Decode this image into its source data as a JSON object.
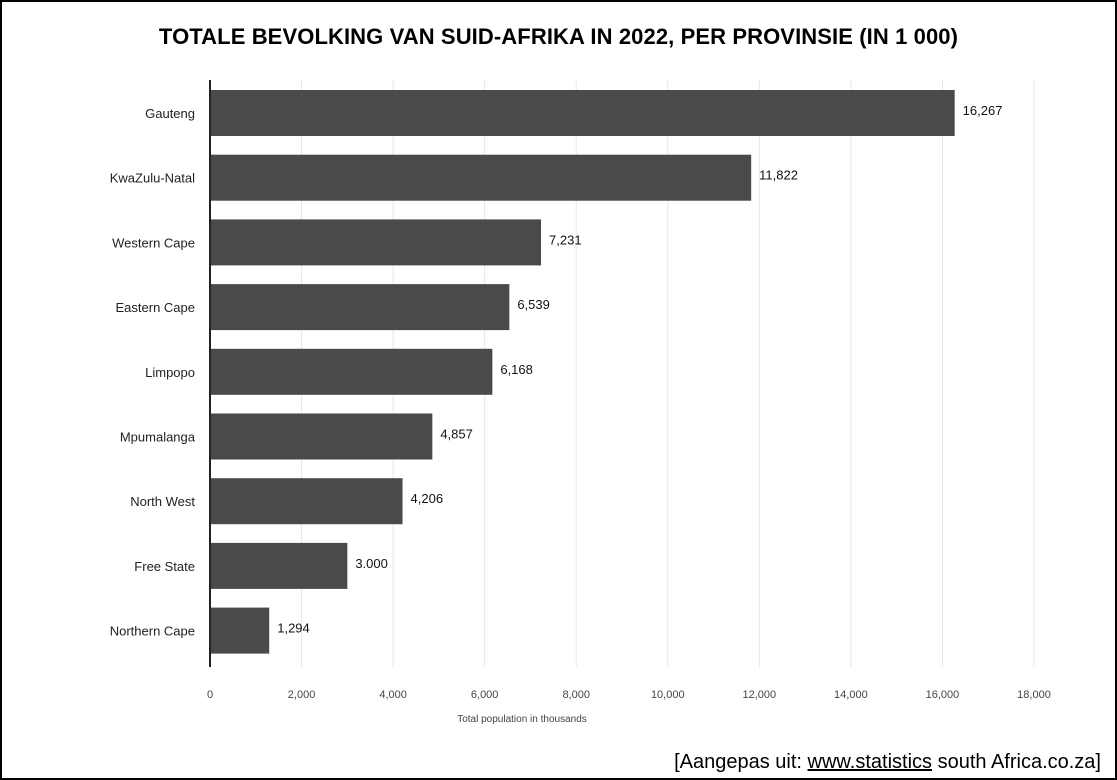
{
  "chart_data": {
    "type": "bar",
    "orientation": "horizontal",
    "title": "TOTALE BEVOLKING VAN SUID-AFRIKA IN 2022, PER PROVINSIE (IN 1 000)",
    "xlabel": "Total population in thousands",
    "ylabel": "",
    "categories": [
      "Gauteng",
      "KwaZulu-Natal",
      "Western Cape",
      "Eastern Cape",
      "Limpopo",
      "Mpumalanga",
      "North West",
      "Free State",
      "Northern Cape"
    ],
    "values": [
      16267,
      11822,
      7231,
      6539,
      6168,
      4857,
      4206,
      3000,
      1294
    ],
    "value_labels": [
      "16,267",
      "11,822",
      "7,231",
      "6,539",
      "6,168",
      "4,857",
      "4,206",
      "3.000",
      "1,294"
    ],
    "xlim": [
      0,
      18000
    ],
    "x_ticks": [
      0,
      2000,
      4000,
      6000,
      8000,
      10000,
      12000,
      14000,
      16000,
      18000
    ],
    "x_tick_labels": [
      "0",
      "2,000",
      "4,000",
      "6,000",
      "8,000",
      "10,000",
      "12,000",
      "14,000",
      "16,000",
      "18,000"
    ],
    "grid": true,
    "bar_color": "#4a4a4a"
  },
  "source": {
    "prefix": "[Aangepas uit: ",
    "link_text": "www.statistics",
    "suffix": " south Africa.co.za]"
  }
}
